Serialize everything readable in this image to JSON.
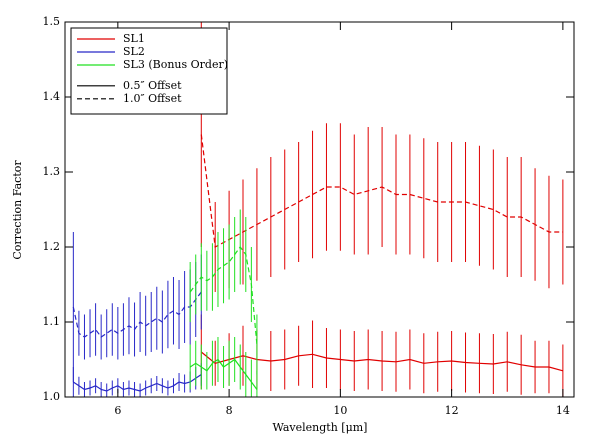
{
  "chart_data": {
    "type": "errorbar-line",
    "xlabel": "Wavelength [μm]",
    "ylabel": "Correction Factor",
    "xlim": [
      5.05,
      14.2
    ],
    "ylim": [
      1.0,
      1.5
    ],
    "xticks": [
      6,
      8,
      10,
      12,
      14
    ],
    "yticks": [
      {
        "value": 1.0,
        "label": "1.0"
      },
      {
        "value": 1.1,
        "label": "1.1"
      },
      {
        "value": 1.2,
        "label": "1.2"
      },
      {
        "value": 1.3,
        "label": "1.3"
      },
      {
        "value": 1.4,
        "label": "1.4"
      },
      {
        "value": 1.5,
        "label": "1.5"
      }
    ],
    "legend": "upper left",
    "linestyles": [
      {
        "label": "0.5″ Offset",
        "dash": false
      },
      {
        "label": "1.0″ Offset",
        "dash": true
      }
    ],
    "series": [
      {
        "name": "SL1",
        "color": "#e00000",
        "lines": [
          {
            "x": [
              7.5,
              7.75,
              8,
              8.25,
              8.5,
              8.75,
              9,
              9.25,
              9.5,
              9.75,
              10,
              10.25,
              10.5,
              10.75,
              11,
              11.25,
              11.5,
              11.75,
              12,
              12.25,
              12.5,
              12.75,
              13,
              13.25,
              13.5,
              13.75,
              14
            ],
            "values": [
              1.06,
              1.045,
              1.05,
              1.055,
              1.05,
              1.048,
              1.05,
              1.055,
              1.057,
              1.052,
              1.05,
              1.048,
              1.05,
              1.048,
              1.047,
              1.05,
              1.045,
              1.047,
              1.048,
              1.046,
              1.045,
              1.044,
              1.047,
              1.043,
              1.04,
              1.04,
              1.035
            ],
            "errors": [
              0.05,
              0.03,
              0.035,
              0.04,
              0.04,
              0.04,
              0.04,
              0.04,
              0.045,
              0.04,
              0.04,
              0.04,
              0.04,
              0.04,
              0.04,
              0.04,
              0.04,
              0.04,
              0.04,
              0.04,
              0.04,
              0.04,
              0.04,
              0.04,
              0.035,
              0.035,
              0.035
            ]
          },
          {
            "x": [
              7.5,
              7.75,
              8,
              8.25,
              8.5,
              8.75,
              9,
              9.25,
              9.5,
              9.75,
              10,
              10.25,
              10.5,
              10.75,
              11,
              11.25,
              11.5,
              11.75,
              12,
              12.25,
              12.5,
              12.75,
              13,
              13.25,
              13.5,
              13.75,
              14
            ],
            "values": [
              1.35,
              1.2,
              1.21,
              1.22,
              1.23,
              1.24,
              1.25,
              1.26,
              1.27,
              1.28,
              1.28,
              1.27,
              1.275,
              1.28,
              1.27,
              1.27,
              1.265,
              1.26,
              1.26,
              1.26,
              1.255,
              1.25,
              1.24,
              1.24,
              1.23,
              1.22,
              1.22
            ],
            "errors": [
              0.15,
              0.06,
              0.065,
              0.07,
              0.075,
              0.08,
              0.08,
              0.08,
              0.085,
              0.085,
              0.085,
              0.08,
              0.085,
              0.08,
              0.08,
              0.08,
              0.08,
              0.08,
              0.08,
              0.08,
              0.08,
              0.08,
              0.08,
              0.08,
              0.075,
              0.075,
              0.07
            ]
          }
        ]
      },
      {
        "name": "SL2",
        "color": "#2828c8",
        "lines": [
          {
            "x": [
              5.2,
              5.3,
              5.4,
              5.5,
              5.6,
              5.7,
              5.8,
              5.9,
              6,
              6.1,
              6.2,
              6.3,
              6.4,
              6.5,
              6.6,
              6.7,
              6.8,
              6.9,
              7,
              7.1,
              7.2,
              7.3,
              7.4,
              7.5
            ],
            "values": [
              1.02,
              1.015,
              1.01,
              1.012,
              1.015,
              1.01,
              1.008,
              1.012,
              1.015,
              1.01,
              1.012,
              1.01,
              1.008,
              1.012,
              1.015,
              1.018,
              1.015,
              1.012,
              1.015,
              1.02,
              1.018,
              1.02,
              1.025,
              1.03
            ],
            "errors": [
              0.02,
              0.012,
              0.01,
              0.01,
              0.01,
              0.01,
              0.01,
              0.01,
              0.01,
              0.01,
              0.01,
              0.01,
              0.01,
              0.01,
              0.01,
              0.01,
              0.01,
              0.01,
              0.01,
              0.012,
              0.012,
              0.014,
              0.015,
              0.015
            ]
          },
          {
            "x": [
              5.2,
              5.3,
              5.4,
              5.5,
              5.6,
              5.7,
              5.8,
              5.9,
              6,
              6.1,
              6.2,
              6.3,
              6.4,
              6.5,
              6.6,
              6.7,
              6.8,
              6.9,
              7,
              7.1,
              7.2,
              7.3,
              7.4,
              7.5
            ],
            "values": [
              1.12,
              1.085,
              1.08,
              1.085,
              1.09,
              1.08,
              1.085,
              1.09,
              1.085,
              1.09,
              1.095,
              1.09,
              1.1,
              1.095,
              1.1,
              1.105,
              1.1,
              1.11,
              1.115,
              1.11,
              1.12,
              1.12,
              1.13,
              1.14
            ],
            "errors": [
              0.1,
              0.03,
              0.03,
              0.032,
              0.035,
              0.03,
              0.032,
              0.035,
              0.035,
              0.035,
              0.038,
              0.036,
              0.04,
              0.04,
              0.04,
              0.042,
              0.042,
              0.045,
              0.045,
              0.046,
              0.048,
              0.05,
              0.05,
              0.05
            ]
          }
        ]
      },
      {
        "name": "SL3 (Bonus Order)",
        "color": "#20e020",
        "lines": [
          {
            "x": [
              7.3,
              7.4,
              7.5,
              7.6,
              7.7,
              7.8,
              7.9,
              8,
              8.1,
              8.2,
              8.3,
              8.4,
              8.5
            ],
            "values": [
              1.04,
              1.045,
              1.04,
              1.035,
              1.045,
              1.05,
              1.04,
              1.045,
              1.05,
              1.04,
              1.03,
              1.02,
              1.01
            ],
            "errors": [
              0.03,
              0.03,
              0.03,
              0.025,
              0.03,
              0.03,
              0.028,
              0.03,
              0.03,
              0.03,
              0.03,
              0.03,
              0.025
            ]
          },
          {
            "x": [
              7.3,
              7.4,
              7.5,
              7.6,
              7.7,
              7.8,
              7.9,
              8,
              8.1,
              8.2,
              8.3,
              8.4,
              8.5
            ],
            "values": [
              1.14,
              1.15,
              1.16,
              1.155,
              1.16,
              1.17,
              1.175,
              1.18,
              1.19,
              1.2,
              1.19,
              1.15,
              1.07
            ],
            "errors": [
              0.04,
              0.04,
              0.045,
              0.04,
              0.045,
              0.05,
              0.05,
              0.05,
              0.05,
              0.05,
              0.05,
              0.05,
              0.04
            ]
          }
        ]
      }
    ]
  }
}
